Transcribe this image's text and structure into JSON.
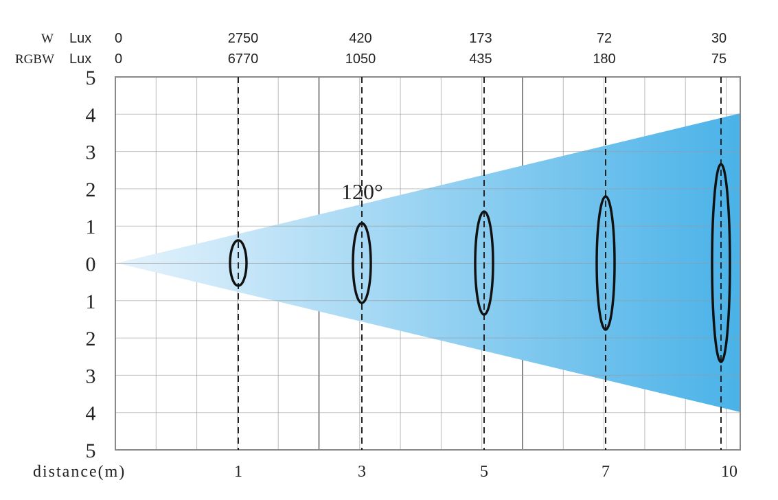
{
  "header": {
    "rows": [
      {
        "label": "W",
        "unit": "Lux",
        "values": [
          "0",
          "2750",
          "420",
          "173",
          "72",
          "30"
        ]
      },
      {
        "label": "RGBW",
        "unit": "Lux",
        "values": [
          "0",
          "6770",
          "1050",
          "435",
          "180",
          "75"
        ]
      }
    ]
  },
  "y_axis": {
    "labels": [
      "5",
      "4",
      "3",
      "2",
      "1",
      "0",
      "1",
      "2",
      "3",
      "4",
      "5"
    ]
  },
  "x_axis": {
    "title": "distance(m)",
    "labels": [
      "1",
      "3",
      "5",
      "7",
      "10"
    ]
  },
  "beam_angle": "120°"
}
